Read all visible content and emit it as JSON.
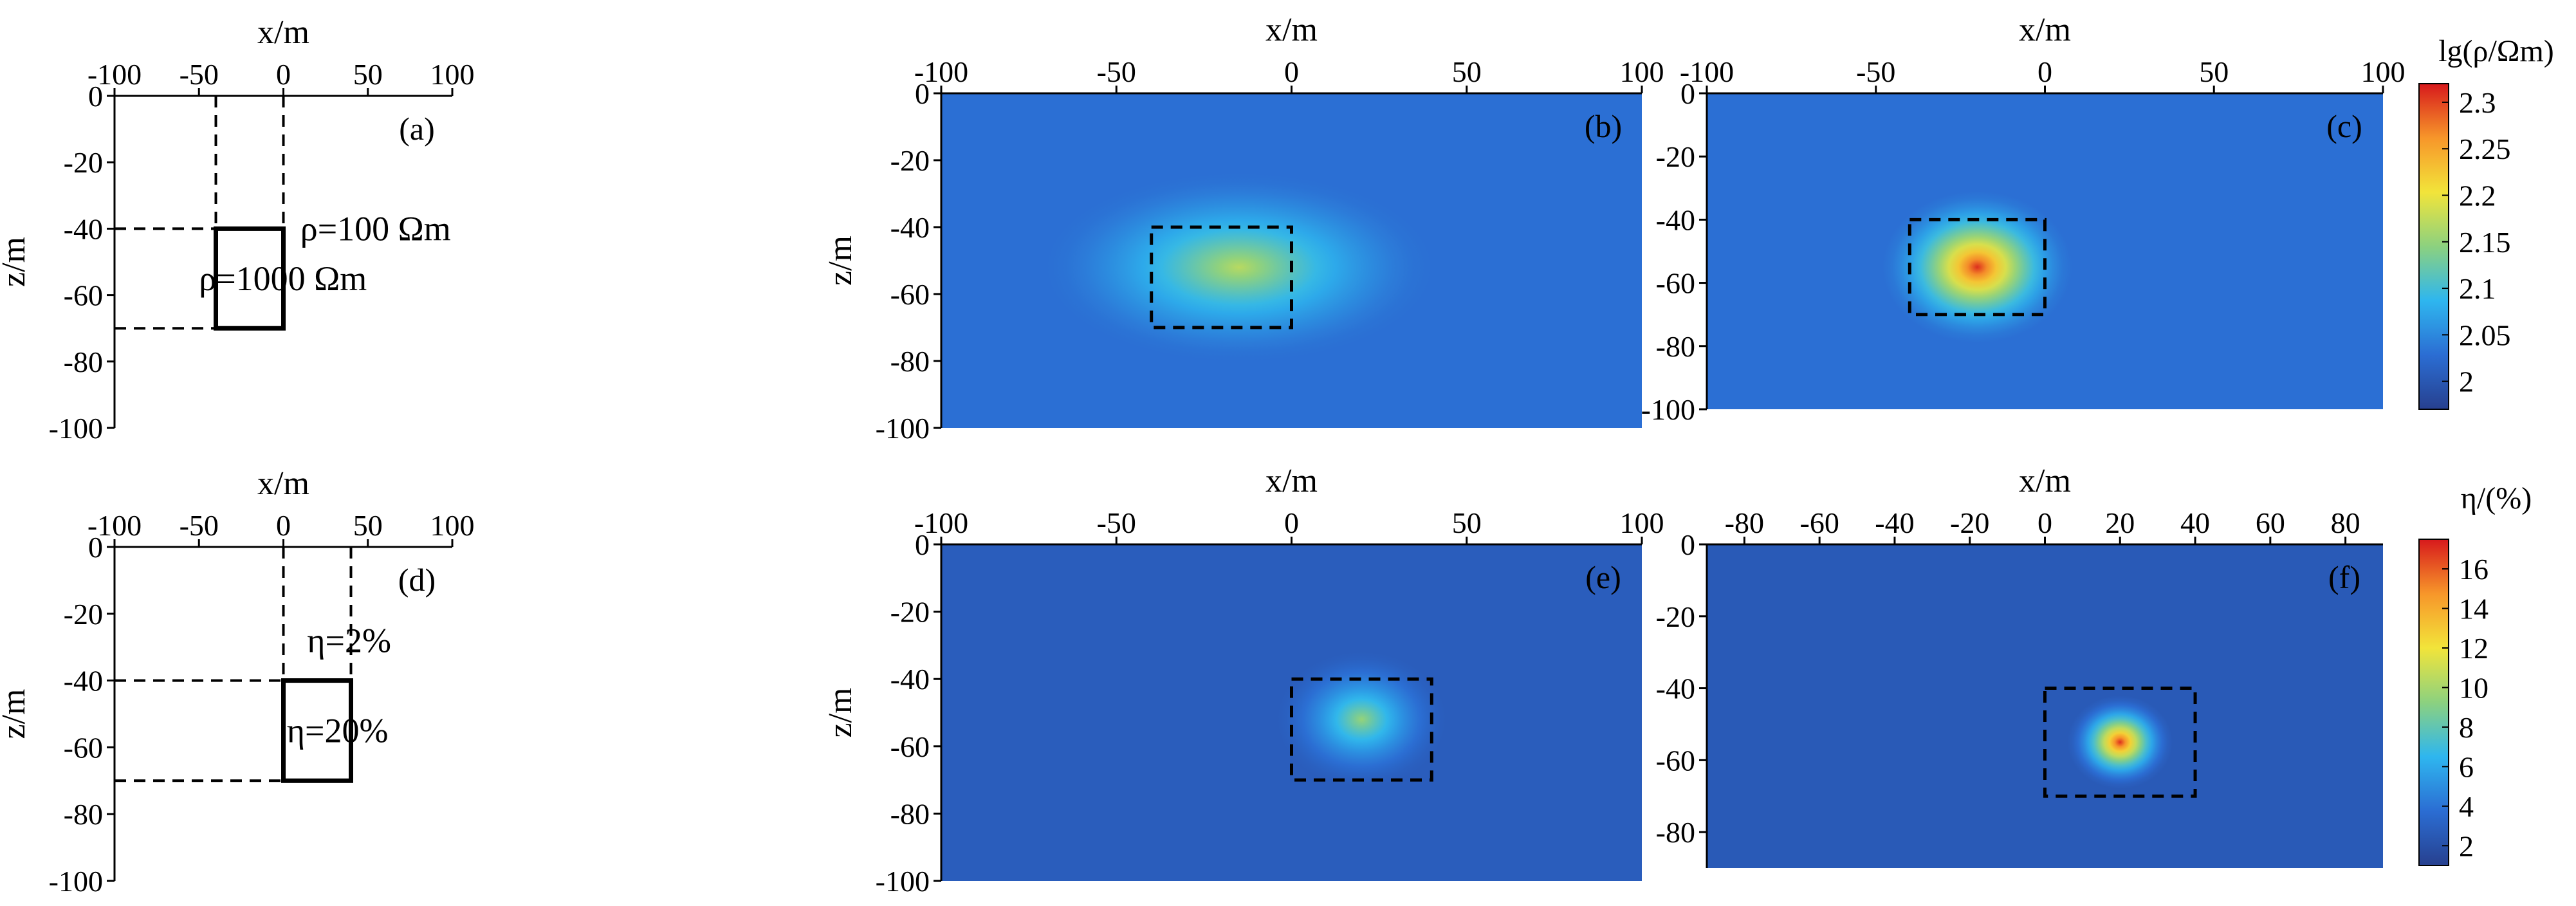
{
  "chart_data": [
    {
      "id": "a",
      "type": "model",
      "panel_label": "(a)",
      "xlabel": "x/m",
      "ylabel": "z/m",
      "xlim": [
        -100,
        100
      ],
      "ylim": [
        -100,
        0
      ],
      "xticks": [
        "-100",
        "-50",
        "0",
        "50",
        "100"
      ],
      "yticks": [
        "0",
        "-20",
        "-40",
        "-60",
        "-80",
        "-100"
      ],
      "body_box": {
        "x": [
          -40,
          0
        ],
        "z": [
          -70,
          -40
        ]
      },
      "annotations": [
        {
          "text": "ρ=100 Ωm",
          "x": 10,
          "z": -40
        },
        {
          "text": "ρ=1000 Ωm",
          "x": -50,
          "z": -55
        }
      ]
    },
    {
      "id": "b",
      "type": "heatmap",
      "panel_label": "(b)",
      "xlabel": "x/m",
      "ylabel": "z/m",
      "xlim": [
        -100,
        100
      ],
      "ylim": [
        -100,
        0
      ],
      "xticks": [
        "-100",
        "-50",
        "0",
        "50",
        "100"
      ],
      "yticks": [
        "0",
        "-20",
        "-40",
        "-60",
        "-80",
        "-100"
      ],
      "quantity": "lg(ρ/Ωm)",
      "background": 2.03,
      "anomaly": {
        "x": -15,
        "z": -52,
        "peak": 2.17,
        "rx": 55,
        "rz": 28
      },
      "dashed_box": {
        "x": [
          -40,
          0
        ],
        "z": [
          -70,
          -40
        ]
      }
    },
    {
      "id": "c",
      "type": "heatmap",
      "panel_label": "(c)",
      "xlabel": "x/m",
      "ylabel": "",
      "xlim": [
        -100,
        100
      ],
      "ylim": [
        -100,
        0
      ],
      "xticks": [
        "-100",
        "-50",
        "0",
        "50",
        "100"
      ],
      "yticks": [
        "0",
        "-20",
        "-40",
        "-60",
        "-80",
        "-100"
      ],
      "quantity": "lg(ρ/Ωm)",
      "background": 2.03,
      "anomaly": {
        "x": -20,
        "z": -55,
        "peak": 2.31,
        "rx": 28,
        "rz": 24
      },
      "dashed_box": {
        "x": [
          -40,
          0
        ],
        "z": [
          -70,
          -40
        ]
      }
    },
    {
      "id": "d",
      "type": "model",
      "panel_label": "(d)",
      "xlabel": "x/m",
      "ylabel": "z/m",
      "xlim": [
        -100,
        100
      ],
      "ylim": [
        -100,
        0
      ],
      "xticks": [
        "-100",
        "-50",
        "0",
        "50",
        "100"
      ],
      "yticks": [
        "0",
        "-20",
        "-40",
        "-60",
        "-80",
        "-100"
      ],
      "body_box": {
        "x": [
          0,
          40
        ],
        "z": [
          -70,
          -40
        ]
      },
      "annotations": [
        {
          "text": "η=2%",
          "x": 14,
          "z": -28
        },
        {
          "text": "η=20%",
          "x": 2,
          "z": -55
        }
      ]
    },
    {
      "id": "e",
      "type": "heatmap",
      "panel_label": "(e)",
      "xlabel": "x/m",
      "ylabel": "z/m",
      "xlim": [
        -100,
        100
      ],
      "ylim": [
        -100,
        0
      ],
      "xticks": [
        "-100",
        "-50",
        "0",
        "50",
        "100"
      ],
      "yticks": [
        "0",
        "-20",
        "-40",
        "-60",
        "-80",
        "-100"
      ],
      "quantity": "η/(%)",
      "background": 2.8,
      "anomaly": {
        "x": 20,
        "z": -52,
        "peak": 9.5,
        "rx": 24,
        "rz": 20
      },
      "dashed_box": {
        "x": [
          0,
          40
        ],
        "z": [
          -70,
          -40
        ]
      }
    },
    {
      "id": "f",
      "type": "heatmap",
      "panel_label": "(f)",
      "xlabel": "x/m",
      "ylabel": "",
      "xlim": [
        -90,
        90
      ],
      "ylim": [
        -90,
        0
      ],
      "xticks": [
        "-80",
        "-60",
        "-40",
        "-20",
        "0",
        "20",
        "40",
        "60",
        "80"
      ],
      "yticks": [
        "0",
        "-20",
        "-40",
        "-60",
        "-80"
      ],
      "quantity": "η/(%)",
      "background": 2.6,
      "anomaly": {
        "x": 20,
        "z": -55,
        "peak": 17,
        "rx": 14,
        "rz": 13
      },
      "dashed_box": {
        "x": [
          0,
          40
        ],
        "z": [
          -70,
          -40
        ]
      }
    }
  ],
  "colorbars": [
    {
      "id": "rho",
      "title": "lg(ρ/Ωm)",
      "range": [
        1.97,
        2.32
      ],
      "ticks": [
        "2.3",
        "2.25",
        "2.2",
        "2.15",
        "2.1",
        "2.05",
        "2"
      ]
    },
    {
      "id": "eta",
      "title": "η/(%)",
      "range": [
        1,
        17.5
      ],
      "ticks": [
        "16",
        "14",
        "12",
        "10",
        "8",
        "6",
        "4",
        "2"
      ]
    }
  ],
  "colors": {
    "colormap": [
      "#27408f",
      "#2b6dd3",
      "#2eb6ef",
      "#8cd17f",
      "#f2e43a",
      "#f7962a",
      "#d7191c"
    ],
    "box_line": "#000000"
  }
}
